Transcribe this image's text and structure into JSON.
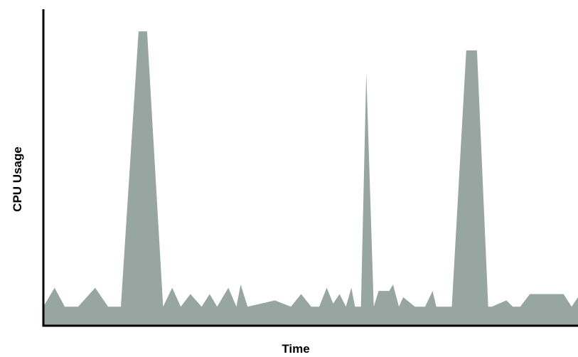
{
  "chart_data": {
    "type": "area",
    "title": "",
    "xlabel": "Time",
    "ylabel": "CPU Usage",
    "xlim": [
      0,
      100
    ],
    "ylim": [
      0,
      100
    ],
    "grid": false,
    "legend": "none",
    "show_tick_labels": false,
    "fill_color": "#97a6a1",
    "axis_color": "#000000",
    "series": [
      {
        "x": [
          0,
          2.1,
          4,
          6.5,
          9.7,
          12.1,
          14.5,
          17.8,
          19.4,
          22.4,
          24.1,
          25.7,
          27.5,
          29.6,
          31.1,
          32.5,
          34.6,
          36.1,
          36.9,
          38.2,
          43.3,
          46.3,
          48.2,
          50.1,
          51.6,
          53,
          54.2,
          55.4,
          56.6,
          57.6,
          58.3,
          59.4,
          60.4,
          61.8,
          62.7,
          64.7,
          65.4,
          66.5,
          67.3,
          69.5,
          71.4,
          72.8,
          73.5,
          74.4,
          76.4,
          79.1,
          81.1,
          83.2,
          83.9,
          86.6,
          87.8,
          89.2,
          91,
          97.3,
          98.8,
          100
        ],
        "y": [
          6,
          12,
          6,
          6,
          12,
          6,
          6,
          93,
          93,
          6,
          12,
          6,
          10,
          6,
          10,
          6,
          12,
          6,
          13,
          6,
          8,
          6,
          10,
          6,
          6,
          12,
          7,
          10,
          6,
          12,
          6,
          6,
          80,
          6,
          11,
          11,
          13,
          6,
          9,
          6,
          6,
          11,
          6,
          6,
          6,
          87,
          87,
          6,
          6,
          8,
          6,
          6,
          10,
          10,
          6,
          9
        ]
      }
    ]
  }
}
